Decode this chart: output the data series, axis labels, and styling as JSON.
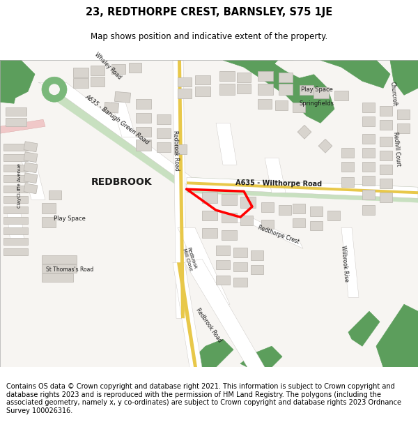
{
  "title_line1": "23, REDTHORPE CREST, BARNSLEY, S75 1JE",
  "title_line2": "Map shows position and indicative extent of the property.",
  "footer": "Contains OS data © Crown copyright and database right 2021. This information is subject to Crown copyright and database rights 2023 and is reproduced with the permission of HM Land Registry. The polygons (including the associated geometry, namely x, y co-ordinates) are subject to Crown copyright and database rights 2023 Ordnance Survey 100026316.",
  "bg_color": "#ffffff",
  "map_bg": "#f7f5f2",
  "green_dark": "#5c9e5c",
  "green_light": "#c8e0c0",
  "green_roundabout": "#7ab87a",
  "road_yellow": "#e8c84a",
  "road_white": "#ffffff",
  "building_fc": "#d8d4ce",
  "building_ec": "#b8b4ae",
  "plot_color": "#ff0000",
  "text_color": "#1a1a1a",
  "pink_road": "#f0c8c8"
}
